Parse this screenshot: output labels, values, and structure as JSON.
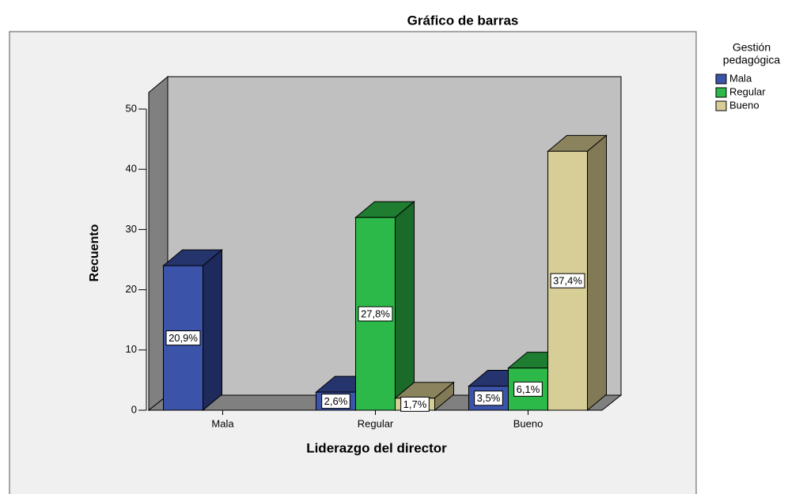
{
  "chart_data": {
    "type": "bar3d",
    "title": "Gráfico de barras",
    "x_label": "Liderazgo del director",
    "y_label": "Recuento",
    "legend_title": [
      "Gestión",
      "pedagógica"
    ],
    "categories": [
      "Mala",
      "Regular",
      "Bueno"
    ],
    "series": [
      {
        "name": "Mala",
        "color": "#3b53a8",
        "top": "#26346e",
        "side": "#1e2a5c",
        "values": [
          24,
          3,
          4
        ],
        "data_labels": [
          "20,9%",
          "2,6%",
          "3,5%"
        ]
      },
      {
        "name": "Regular",
        "color": "#2db84a",
        "top": "#1f7d31",
        "side": "#1a6a2a",
        "values": [
          null,
          32,
          7
        ],
        "data_labels": [
          null,
          "27,8%",
          "6,1%"
        ]
      },
      {
        "name": "Bueno",
        "color": "#d7cd97",
        "top": "#8b835d",
        "side": "#827a56",
        "values": [
          null,
          2,
          43
        ],
        "data_labels": [
          null,
          "1,7%",
          "37,4%"
        ]
      }
    ],
    "ylim": [
      0,
      50
    ],
    "yticks": [
      0,
      10,
      20,
      30,
      40,
      50
    ]
  }
}
